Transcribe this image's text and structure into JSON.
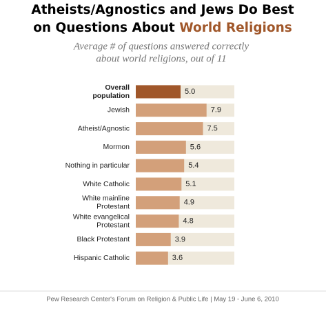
{
  "chart_data": {
    "type": "bar",
    "title": [
      "Atheists/Agnostics and Jews Do Best",
      "on Questions About "
    ],
    "title_highlight": "World Religions",
    "subtitle": [
      "Average # of questions answered correctly",
      "about world religions, out of 11"
    ],
    "categories": [
      [
        "Overall",
        "population"
      ],
      [
        "Jewish"
      ],
      [
        "Atheist/Agnostic"
      ],
      [
        "Mormon"
      ],
      [
        "Nothing in particular"
      ],
      [
        "White Catholic"
      ],
      [
        "White mainline",
        "Protestant"
      ],
      [
        "White evangelical",
        "Protestant"
      ],
      [
        "Black Protestant"
      ],
      [
        "Hispanic Catholic"
      ]
    ],
    "values": [
      5.0,
      7.9,
      7.5,
      5.6,
      5.4,
      5.1,
      4.9,
      4.8,
      3.9,
      3.6
    ],
    "value_labels": [
      "5.0",
      "7.9",
      "7.5",
      "5.6",
      "5.4",
      "5.1",
      "4.9",
      "4.8",
      "3.9",
      "3.6"
    ],
    "colors": [
      "#a0572a",
      "#d3a07a",
      "#d3a07a",
      "#d3a07a",
      "#d3a07a",
      "#d3a07a",
      "#d3a07a",
      "#d3a07a",
      "#d3a07a",
      "#d3a07a"
    ],
    "track_color": "#efe9dc",
    "xlim": [
      0,
      11
    ],
    "source": "Pew Research Center's Forum on Religion & Public Life  |  May 19 - June 6, 2010"
  }
}
